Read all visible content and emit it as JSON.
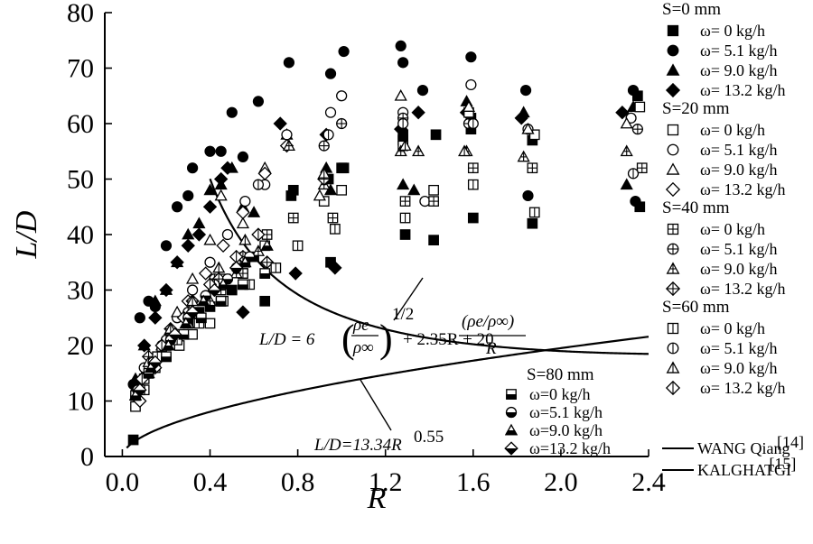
{
  "chart_data": {
    "type": "scatter",
    "xlabel": "R",
    "ylabel": "L/D",
    "xlim": [
      -0.08,
      2.4
    ],
    "ylim": [
      0,
      80
    ],
    "xticks": [
      "0.0",
      "0.4",
      "0.8",
      "1.2",
      "1.6",
      "2.0",
      "2.4"
    ],
    "yticks": [
      "0",
      "10",
      "20",
      "30",
      "40",
      "50",
      "60",
      "70",
      "80"
    ],
    "grid": false,
    "legend_position": "right",
    "legend_groups": [
      {
        "header": "S=0 mm",
        "style": "filled",
        "entries": [
          "ω= 0 kg/h",
          "ω= 5.1 kg/h",
          "ω= 9.0 kg/h",
          "ω= 13.2 kg/h"
        ]
      },
      {
        "header": "S=20 mm",
        "style": "open",
        "entries": [
          "ω= 0 kg/h",
          "ω= 5.1 kg/h",
          "ω= 9.0 kg/h",
          "ω= 13.2 kg/h"
        ]
      },
      {
        "header": "S=40 mm",
        "style": "cross",
        "entries": [
          "ω= 0 kg/h",
          "ω= 5.1 kg/h",
          "ω= 9.0 kg/h",
          "ω= 13.2 kg/h"
        ]
      },
      {
        "header": "S=60 mm",
        "style": "vline",
        "entries": [
          "ω= 0 kg/h",
          "ω= 5.1 kg/h",
          "ω= 9.0 kg/h",
          "ω= 13.2 kg/h"
        ]
      }
    ],
    "lines_legend": [
      {
        "label": "WANG Qiang",
        "ref": "[14]"
      },
      {
        "label": "KALGHATGI",
        "ref": "[15]"
      }
    ],
    "inset_legend": {
      "header": "S=80 mm",
      "style": "halffilled",
      "entries": [
        "ω=0 kg/h",
        "ω=5.1 kg/h",
        "ω=9.0 kg/h",
        "ω=13.2 kg/h"
      ]
    },
    "annotations": {
      "wang_formula": {
        "prefix": "L/D = 6",
        "rho_e": "ρe",
        "rho_inf": "ρ∞",
        "power": "1/2",
        "middle": "+ 2.35R + 20",
        "ratio": "(ρe/ρ∞)",
        "denominator": "R"
      },
      "kalghatgi_formula": {
        "text": "L/D=13.34R",
        "power": "0.55"
      }
    },
    "curves": [
      {
        "name": "WANG Qiang",
        "equation": "L/D = 6(rho_e/rho_inf)^0.5 + 2.35R + 20(rho_e/rho_inf)/R",
        "rho_ratio": 0.87,
        "x_range": [
          0.4,
          2.4
        ]
      },
      {
        "name": "KALGHATGI",
        "equation": "L/D = 13.34 R^0.55",
        "x_range": [
          0.02,
          2.4
        ]
      }
    ],
    "series": [
      {
        "group": "S=0 mm",
        "omega": "0 kg/h",
        "marker": "square",
        "fill": "filled",
        "x": [
          0.05,
          0.08,
          0.12,
          0.16,
          0.2,
          0.25,
          0.3,
          0.35,
          0.4,
          0.45,
          0.5,
          0.55,
          0.6,
          0.65,
          0.77,
          0.78,
          0.94,
          0.95,
          1.0,
          1.01,
          1.28,
          1.28,
          1.29,
          1.42,
          1.43,
          1.59,
          1.59,
          1.6,
          1.87,
          1.87,
          2.35,
          2.36
        ],
        "y": [
          3,
          12,
          15,
          18,
          20,
          22,
          24,
          26,
          27,
          28,
          30,
          33,
          36,
          28,
          47,
          48,
          50,
          35,
          52,
          52,
          58,
          57,
          40,
          39,
          58,
          61,
          59,
          43,
          57,
          42,
          65,
          45
        ]
      },
      {
        "group": "S=0 mm",
        "omega": "5.1 kg/h",
        "marker": "circle",
        "fill": "filled",
        "x": [
          0.05,
          0.08,
          0.12,
          0.15,
          0.2,
          0.25,
          0.3,
          0.32,
          0.4,
          0.45,
          0.5,
          0.55,
          0.62,
          0.76,
          0.95,
          1.01,
          1.27,
          1.28,
          1.37,
          1.59,
          1.84,
          1.85,
          2.33,
          2.34
        ],
        "y": [
          13,
          25,
          28,
          27,
          38,
          45,
          47,
          52,
          55,
          55,
          62,
          54,
          64,
          71,
          69,
          73,
          74,
          71,
          66,
          72,
          66,
          47,
          66,
          46
        ]
      },
      {
        "group": "S=0 mm",
        "omega": "9.0 kg/h",
        "marker": "triangle",
        "fill": "filled",
        "x": [
          0.06,
          0.1,
          0.15,
          0.2,
          0.25,
          0.3,
          0.35,
          0.4,
          0.45,
          0.5,
          0.55,
          0.6,
          0.75,
          0.93,
          0.95,
          1.28,
          1.33,
          1.57,
          1.83,
          2.3,
          2.33
        ],
        "y": [
          14,
          20,
          28,
          30,
          35,
          40,
          42,
          48,
          49,
          52,
          45,
          44,
          58,
          52,
          48,
          49,
          48,
          64,
          62,
          49,
          63
        ]
      },
      {
        "group": "S=0 mm",
        "omega": "13.2 kg/h",
        "marker": "diamond",
        "fill": "filled",
        "x": [
          0.07,
          0.1,
          0.15,
          0.2,
          0.25,
          0.3,
          0.35,
          0.4,
          0.45,
          0.48,
          0.55,
          0.72,
          0.79,
          0.93,
          0.97,
          1.27,
          1.35,
          1.57,
          1.82,
          2.28
        ],
        "y": [
          12,
          20,
          25,
          30,
          35,
          38,
          40,
          45,
          50,
          52,
          26,
          60,
          33,
          58,
          34,
          59,
          62,
          62,
          61,
          62
        ]
      },
      {
        "group": "S=20 mm",
        "omega": "0 kg/h",
        "marker": "square",
        "fill": "open",
        "x": [
          0.06,
          0.1,
          0.15,
          0.2,
          0.26,
          0.32,
          0.4,
          0.47,
          0.56,
          0.65,
          0.92,
          1.0,
          1.28,
          1.42,
          1.58,
          1.88,
          2.36
        ],
        "y": [
          9,
          12,
          16,
          18,
          20,
          22,
          24,
          32,
          35,
          38,
          46,
          48,
          56,
          48,
          62,
          58,
          63
        ]
      },
      {
        "group": "S=20 mm",
        "omega": "5.1 kg/h",
        "marker": "circle",
        "fill": "open",
        "x": [
          0.08,
          0.12,
          0.18,
          0.25,
          0.32,
          0.4,
          0.48,
          0.56,
          0.65,
          0.75,
          0.95,
          1.0,
          1.28,
          1.38,
          1.59,
          1.85,
          2.32
        ],
        "y": [
          12,
          15,
          20,
          25,
          30,
          35,
          40,
          46,
          49,
          58,
          62,
          65,
          62,
          46,
          67,
          59,
          61
        ]
      },
      {
        "group": "S=20 mm",
        "omega": "9.0 kg/h",
        "marker": "triangle",
        "fill": "open",
        "x": [
          0.07,
          0.12,
          0.18,
          0.25,
          0.32,
          0.4,
          0.45,
          0.55,
          0.65,
          0.9,
          1.27,
          1.58,
          1.85,
          2.3
        ],
        "y": [
          11,
          15,
          20,
          26,
          32,
          39,
          47,
          42,
          52,
          47,
          65,
          63,
          59,
          60
        ]
      },
      {
        "group": "S=20 mm",
        "omega": "13.2 kg/h",
        "marker": "diamond",
        "fill": "open",
        "x": [
          0.08,
          0.15,
          0.22,
          0.3,
          0.38,
          0.46,
          0.55,
          0.65,
          0.75
        ],
        "y": [
          10,
          16,
          22,
          28,
          33,
          38,
          44,
          51,
          56
        ]
      },
      {
        "group": "S=40 mm",
        "omega": "0 kg/h",
        "marker": "square",
        "fill": "cross",
        "x": [
          0.1,
          0.18,
          0.26,
          0.35,
          0.45,
          0.55,
          0.66,
          0.78,
          0.96,
          1.29,
          1.42,
          1.6,
          1.87,
          2.37
        ],
        "y": [
          14,
          19,
          22,
          25,
          30,
          33,
          40,
          43,
          43,
          46,
          46,
          52,
          52,
          52
        ]
      },
      {
        "group": "S=40 mm",
        "omega": "5.1 kg/h",
        "marker": "circle",
        "fill": "cross",
        "x": [
          0.12,
          0.22,
          0.32,
          0.42,
          0.55,
          0.92,
          1.0,
          1.28,
          1.58,
          2.35
        ],
        "y": [
          16,
          22,
          26,
          32,
          36,
          56,
          60,
          61,
          60,
          59
        ]
      },
      {
        "group": "S=40 mm",
        "omega": "9.0 kg/h",
        "marker": "triangle",
        "fill": "cross",
        "x": [
          0.1,
          0.2,
          0.3,
          0.4,
          0.52,
          0.62,
          0.76,
          0.92,
          1.27,
          1.35,
          1.57,
          1.83,
          2.3
        ],
        "y": [
          15,
          20,
          24,
          28,
          33,
          37,
          56,
          49,
          55,
          55,
          55,
          54,
          55
        ]
      },
      {
        "group": "S=40 mm",
        "omega": "13.2 kg/h",
        "marker": "diamond",
        "fill": "cross",
        "x": [
          0.12,
          0.22,
          0.32,
          0.44,
          0.55,
          0.66,
          0.92
        ],
        "y": [
          18,
          23,
          28,
          32,
          36,
          35,
          50
        ]
      },
      {
        "group": "S=60 mm",
        "omega": "0 kg/h",
        "marker": "square",
        "fill": "vline",
        "x": [
          0.08,
          0.16,
          0.25,
          0.35,
          0.46,
          0.58,
          0.7,
          0.8,
          0.97,
          1.29,
          1.6,
          1.88
        ],
        "y": [
          12,
          18,
          21,
          24,
          28,
          31,
          34,
          38,
          41,
          43,
          49,
          44
        ]
      },
      {
        "group": "S=60 mm",
        "omega": "5.1 kg/h",
        "marker": "circle",
        "fill": "vline",
        "x": [
          0.1,
          0.2,
          0.3,
          0.42,
          0.52,
          0.62,
          0.94,
          1.28,
          1.6,
          2.33
        ],
        "y": [
          16,
          21,
          26,
          31,
          34,
          49,
          58,
          60,
          60,
          51
        ]
      },
      {
        "group": "S=60 mm",
        "omega": "9.0 kg/h",
        "marker": "triangle",
        "fill": "vline",
        "x": [
          0.12,
          0.22,
          0.32,
          0.44,
          0.56,
          0.92,
          1.29,
          1.56
        ],
        "y": [
          17,
          23,
          28,
          34,
          39,
          51,
          56,
          55
        ]
      },
      {
        "group": "S=60 mm",
        "omega": "13.2 kg/h",
        "marker": "diamond",
        "fill": "vline",
        "x": [
          0.09,
          0.18,
          0.28,
          0.4,
          0.52,
          0.62
        ],
        "y": [
          14,
          20,
          25,
          31,
          36,
          40
        ]
      },
      {
        "group": "S=80 mm",
        "omega": "0 kg/h",
        "marker": "square",
        "fill": "halffilled",
        "x": [
          0.06,
          0.12,
          0.2,
          0.28,
          0.36,
          0.45,
          0.55,
          0.65
        ],
        "y": [
          11,
          15,
          18,
          22,
          25,
          28,
          31,
          33
        ]
      },
      {
        "group": "S=80 mm",
        "omega": "5.1 kg/h",
        "marker": "circle",
        "fill": "halffilled",
        "x": [
          0.07,
          0.14,
          0.22,
          0.3,
          0.38,
          0.48,
          0.58
        ],
        "y": [
          12,
          17,
          21,
          25,
          29,
          32,
          36
        ]
      },
      {
        "group": "S=80 mm",
        "omega": "9.0 kg/h",
        "marker": "triangle",
        "fill": "halffilled",
        "x": [
          0.06,
          0.13,
          0.21,
          0.29,
          0.37,
          0.46,
          0.56,
          0.66
        ],
        "y": [
          11,
          16,
          20,
          24,
          28,
          31,
          35,
          38
        ]
      },
      {
        "group": "S=80 mm",
        "omega": "13.2 kg/h",
        "marker": "diamond",
        "fill": "halffilled",
        "x": [
          0.08,
          0.15,
          0.24,
          0.32,
          0.42,
          0.52
        ],
        "y": [
          12,
          17,
          22,
          26,
          30,
          34
        ]
      }
    ]
  }
}
